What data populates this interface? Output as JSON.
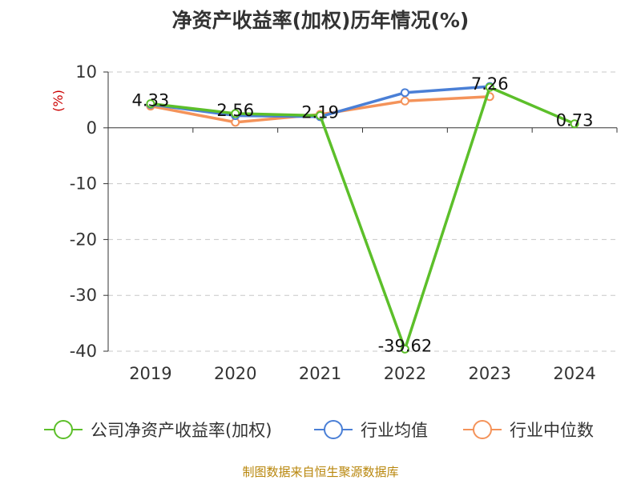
{
  "chart_data": {
    "type": "line",
    "title": "净资产收益率(加权)历年情况(%)",
    "ylabel": "(%)",
    "categories": [
      "2019",
      "2020",
      "2021",
      "2022",
      "2023",
      "2024"
    ],
    "ylim": [
      -40,
      10
    ],
    "yticks": [
      10,
      0,
      -10,
      -20,
      -30,
      -40
    ],
    "grid": true,
    "legend_position": "bottom",
    "series": [
      {
        "name": "公司净资产收益率(加权)",
        "color": "#5cbf2a",
        "values": [
          4.33,
          2.56,
          2.19,
          -39.62,
          7.26,
          0.73
        ],
        "labels": [
          "4.33",
          "2.56",
          "2.19",
          "-39.62",
          "7.26",
          "0.73"
        ]
      },
      {
        "name": "行业均值",
        "color": "#4a7fd6",
        "values": [
          4.2,
          2.2,
          2.0,
          6.3,
          7.4,
          null
        ],
        "labels": []
      },
      {
        "name": "行业中位数",
        "color": "#f4935a",
        "values": [
          3.9,
          1.0,
          2.4,
          4.8,
          5.6,
          null
        ],
        "labels": []
      }
    ],
    "source": "制图数据来自恒生聚源数据库"
  }
}
